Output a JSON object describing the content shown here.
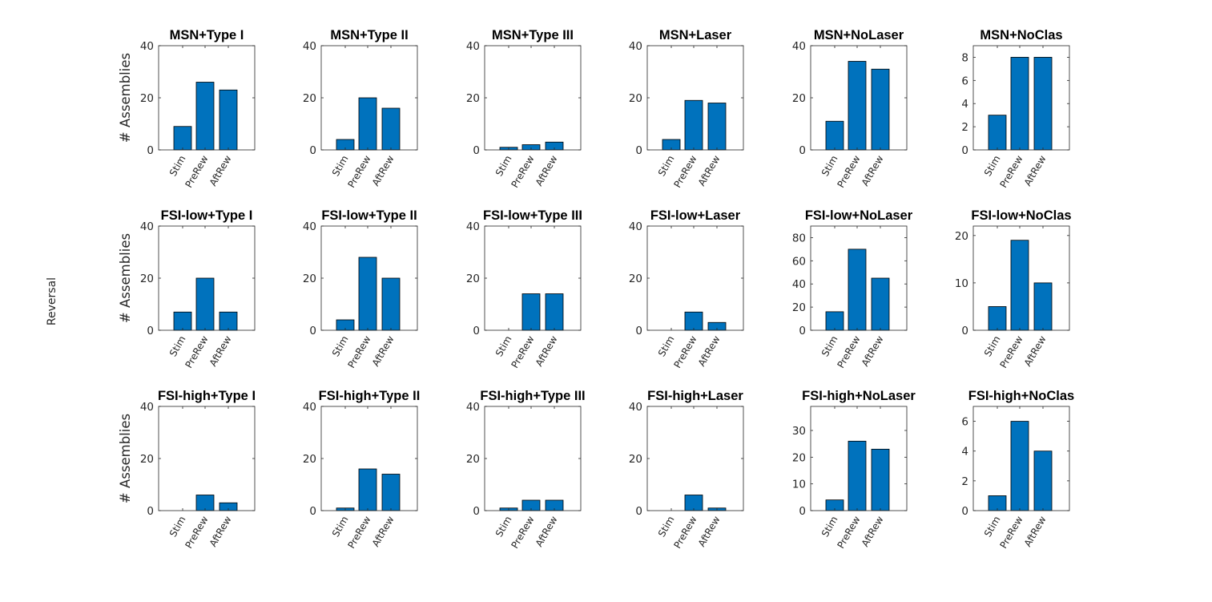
{
  "figure": {
    "side_label": "Reversal"
  },
  "chart_data": [
    {
      "type": "bar",
      "title": "MSN+Type I",
      "ylabel": "# Assemblies",
      "categories": [
        "Stim",
        "PreRew",
        "AftRew"
      ],
      "values": [
        9,
        26,
        23
      ],
      "ylim": [
        0,
        40
      ],
      "yticks": [
        0,
        20,
        40
      ]
    },
    {
      "type": "bar",
      "title": "MSN+Type II",
      "ylabel": "",
      "categories": [
        "Stim",
        "PreRew",
        "AftRew"
      ],
      "values": [
        4,
        20,
        16
      ],
      "ylim": [
        0,
        40
      ],
      "yticks": [
        0,
        20,
        40
      ]
    },
    {
      "type": "bar",
      "title": "MSN+Type III",
      "ylabel": "",
      "categories": [
        "Stim",
        "PreRew",
        "AftRew"
      ],
      "values": [
        1,
        2,
        3
      ],
      "ylim": [
        0,
        40
      ],
      "yticks": [
        0,
        20,
        40
      ]
    },
    {
      "type": "bar",
      "title": "MSN+Laser",
      "ylabel": "",
      "categories": [
        "Stim",
        "PreRew",
        "AftRew"
      ],
      "values": [
        4,
        19,
        18
      ],
      "ylim": [
        0,
        40
      ],
      "yticks": [
        0,
        20,
        40
      ]
    },
    {
      "type": "bar",
      "title": "MSN+NoLaser",
      "ylabel": "",
      "categories": [
        "Stim",
        "PreRew",
        "AftRew"
      ],
      "values": [
        11,
        34,
        31
      ],
      "ylim": [
        0,
        40
      ],
      "yticks": [
        0,
        20,
        40
      ]
    },
    {
      "type": "bar",
      "title": "MSN+NoClas",
      "ylabel": "",
      "categories": [
        "Stim",
        "PreRew",
        "AftRew"
      ],
      "values": [
        3,
        8,
        8
      ],
      "ylim": [
        0,
        9
      ],
      "yticks": [
        0,
        2,
        4,
        6,
        8
      ]
    },
    {
      "type": "bar",
      "title": "FSI-low+Type I",
      "ylabel": "# Assemblies",
      "categories": [
        "Stim",
        "PreRew",
        "AftRew"
      ],
      "values": [
        7,
        20,
        7
      ],
      "ylim": [
        0,
        40
      ],
      "yticks": [
        0,
        20,
        40
      ]
    },
    {
      "type": "bar",
      "title": "FSI-low+Type II",
      "ylabel": "",
      "categories": [
        "Stim",
        "PreRew",
        "AftRew"
      ],
      "values": [
        4,
        28,
        20
      ],
      "ylim": [
        0,
        40
      ],
      "yticks": [
        0,
        20,
        40
      ]
    },
    {
      "type": "bar",
      "title": "FSI-low+Type III",
      "ylabel": "",
      "categories": [
        "Stim",
        "PreRew",
        "AftRew"
      ],
      "values": [
        0,
        14,
        14
      ],
      "ylim": [
        0,
        40
      ],
      "yticks": [
        0,
        20,
        40
      ]
    },
    {
      "type": "bar",
      "title": "FSI-low+Laser",
      "ylabel": "",
      "categories": [
        "Stim",
        "PreRew",
        "AftRew"
      ],
      "values": [
        0,
        7,
        3
      ],
      "ylim": [
        0,
        40
      ],
      "yticks": [
        0,
        20,
        40
      ]
    },
    {
      "type": "bar",
      "title": "FSI-low+NoLaser",
      "ylabel": "",
      "categories": [
        "Stim",
        "PreRew",
        "AftRew"
      ],
      "values": [
        16,
        70,
        45
      ],
      "ylim": [
        0,
        90
      ],
      "yticks": [
        0,
        20,
        40,
        60,
        80
      ]
    },
    {
      "type": "bar",
      "title": "FSI-low+NoClas",
      "ylabel": "",
      "categories": [
        "Stim",
        "PreRew",
        "AftRew"
      ],
      "values": [
        5,
        19,
        10
      ],
      "ylim": [
        0,
        22
      ],
      "yticks": [
        0,
        10,
        20
      ]
    },
    {
      "type": "bar",
      "title": "FSI-high+Type I",
      "ylabel": "# Assemblies",
      "categories": [
        "Stim",
        "PreRew",
        "AftRew"
      ],
      "values": [
        0,
        6,
        3
      ],
      "ylim": [
        0,
        40
      ],
      "yticks": [
        0,
        20,
        40
      ]
    },
    {
      "type": "bar",
      "title": "FSI-high+Type II",
      "ylabel": "",
      "categories": [
        "Stim",
        "PreRew",
        "AftRew"
      ],
      "values": [
        1,
        16,
        14
      ],
      "ylim": [
        0,
        40
      ],
      "yticks": [
        0,
        20,
        40
      ]
    },
    {
      "type": "bar",
      "title": "FSI-high+Type III",
      "ylabel": "",
      "categories": [
        "Stim",
        "PreRew",
        "AftRew"
      ],
      "values": [
        1,
        4,
        4
      ],
      "ylim": [
        0,
        40
      ],
      "yticks": [
        0,
        20,
        40
      ]
    },
    {
      "type": "bar",
      "title": "FSI-high+Laser",
      "ylabel": "",
      "categories": [
        "Stim",
        "PreRew",
        "AftRew"
      ],
      "values": [
        0,
        6,
        1
      ],
      "ylim": [
        0,
        40
      ],
      "yticks": [
        0,
        20,
        40
      ]
    },
    {
      "type": "bar",
      "title": "FSI-high+NoLaser",
      "ylabel": "",
      "categories": [
        "Stim",
        "PreRew",
        "AftRew"
      ],
      "values": [
        4,
        26,
        23
      ],
      "ylim": [
        0,
        39
      ],
      "yticks": [
        0,
        10,
        20,
        30
      ]
    },
    {
      "type": "bar",
      "title": "FSI-high+NoClas",
      "ylabel": "",
      "categories": [
        "Stim",
        "PreRew",
        "AftRew"
      ],
      "values": [
        1,
        6,
        4
      ],
      "ylim": [
        0,
        7
      ],
      "yticks": [
        0,
        2,
        4,
        6
      ]
    }
  ],
  "colors": {
    "bar_fill": "#0072BD",
    "bar_edge": "#000000",
    "axis": "#262626"
  }
}
